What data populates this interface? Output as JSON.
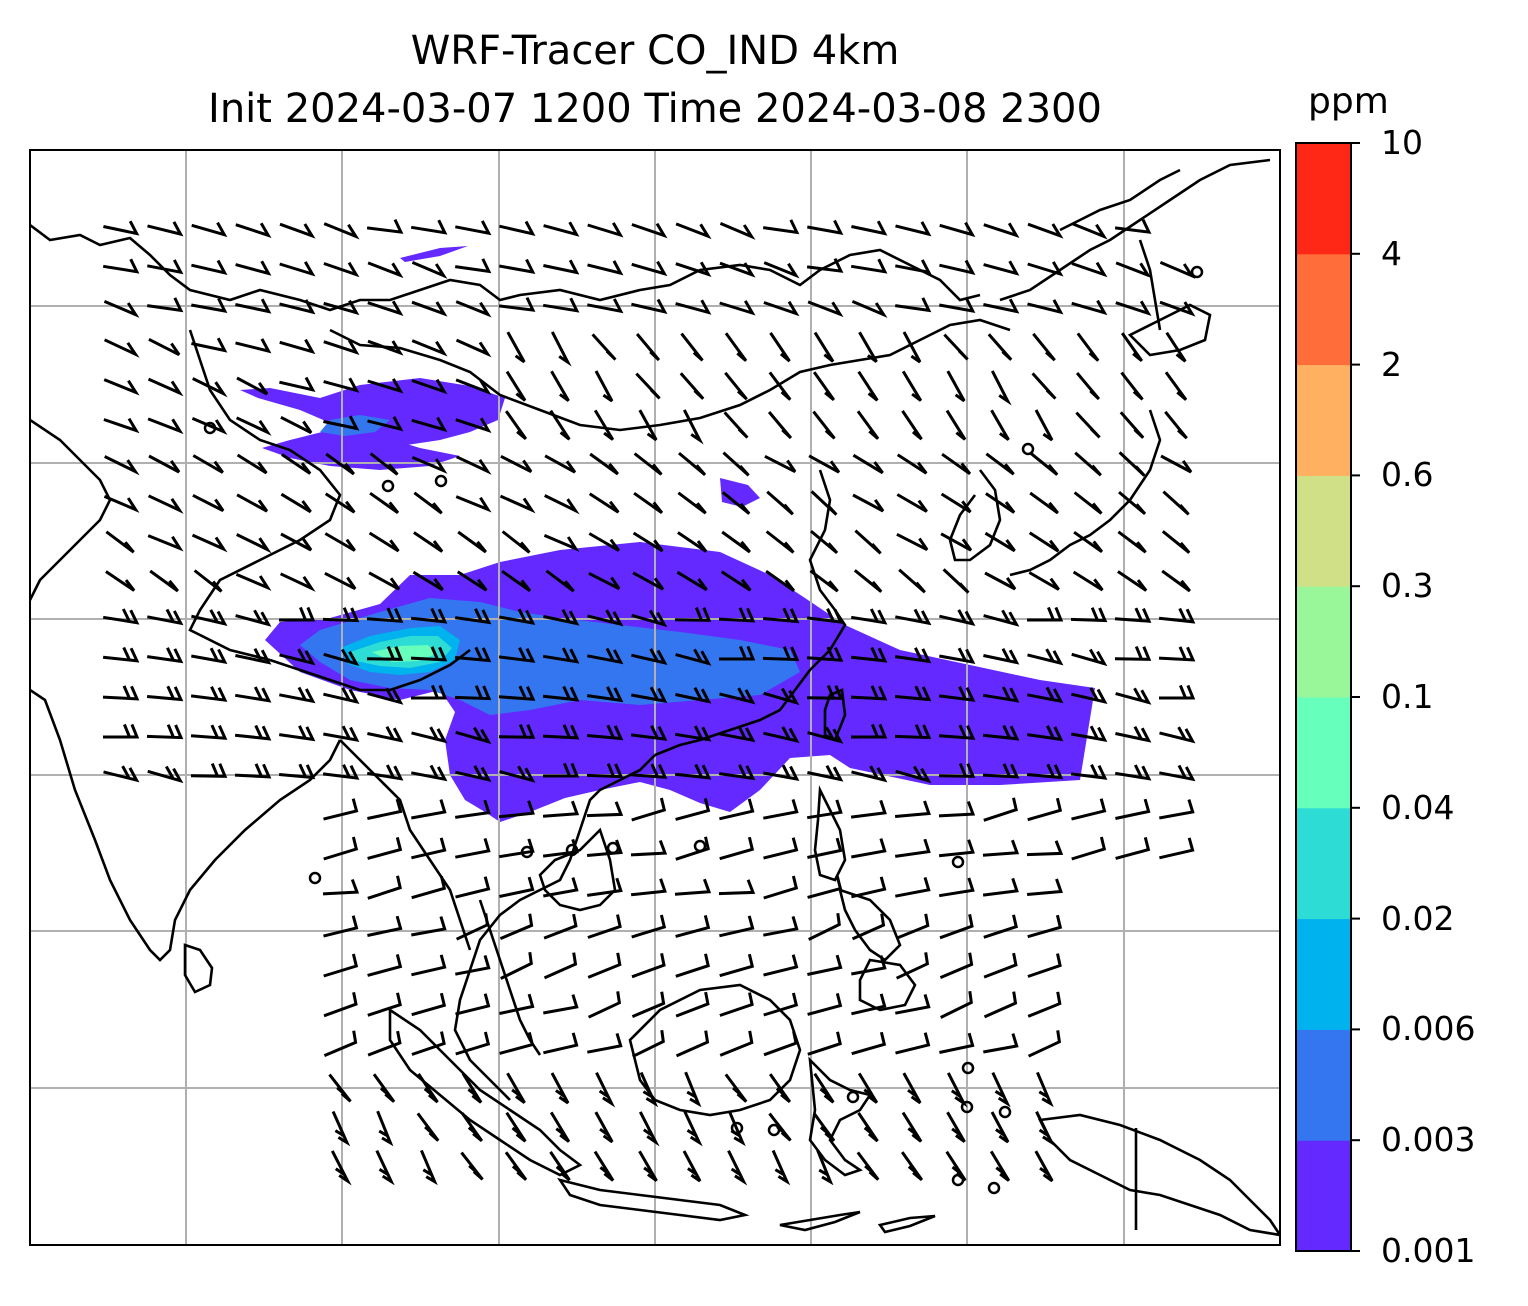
{
  "title_line1": "WRF-Tracer CO_IND 4km",
  "title_line2": "Init 2024-03-07 1200 Time 2024-03-08 2300",
  "colorbar": {
    "unit": "ppm",
    "levels": [
      "0.001",
      "0.003",
      "0.006",
      "0.02",
      "0.04",
      "0.1",
      "0.3",
      "0.6",
      "2",
      "4",
      "10"
    ],
    "colors": [
      "#6329ff",
      "#3476f0",
      "#00b2ee",
      "#2ddcd4",
      "#66ffbb",
      "#99f799",
      "#cfe087",
      "#ffb060",
      "#ff6e3a",
      "#ff2816"
    ]
  },
  "map": {
    "gridlines": "on",
    "coastline_color": "#000000",
    "grid_color": "#b0b0b0"
  }
}
